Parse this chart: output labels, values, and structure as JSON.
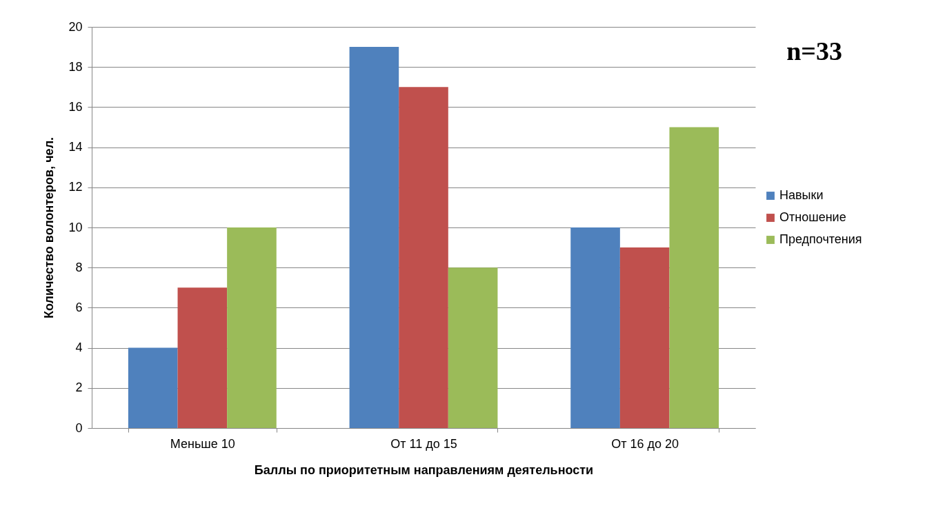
{
  "chart_data": {
    "type": "bar",
    "xlabel": "Баллы по приоритетным направлениям деятельности",
    "ylabel": "Количество волонтеров, чел.",
    "categories": [
      "Меньше 10",
      "От 11 до 15",
      "От 16 до 20"
    ],
    "series": [
      {
        "name": "Навыки",
        "color": "#4f81bd",
        "values": [
          4,
          19,
          10
        ]
      },
      {
        "name": "Отношение",
        "color": "#c0504d",
        "values": [
          7,
          17,
          9
        ]
      },
      {
        "name": "Предпочтения",
        "color": "#9bbb59",
        "values": [
          10,
          8,
          15
        ]
      }
    ],
    "ylim": [
      0,
      20
    ],
    "yticks": [
      0,
      2,
      4,
      6,
      8,
      10,
      12,
      14,
      16,
      18,
      20
    ],
    "grid": "y",
    "legend": "right",
    "annotations": [
      "n=33"
    ]
  }
}
